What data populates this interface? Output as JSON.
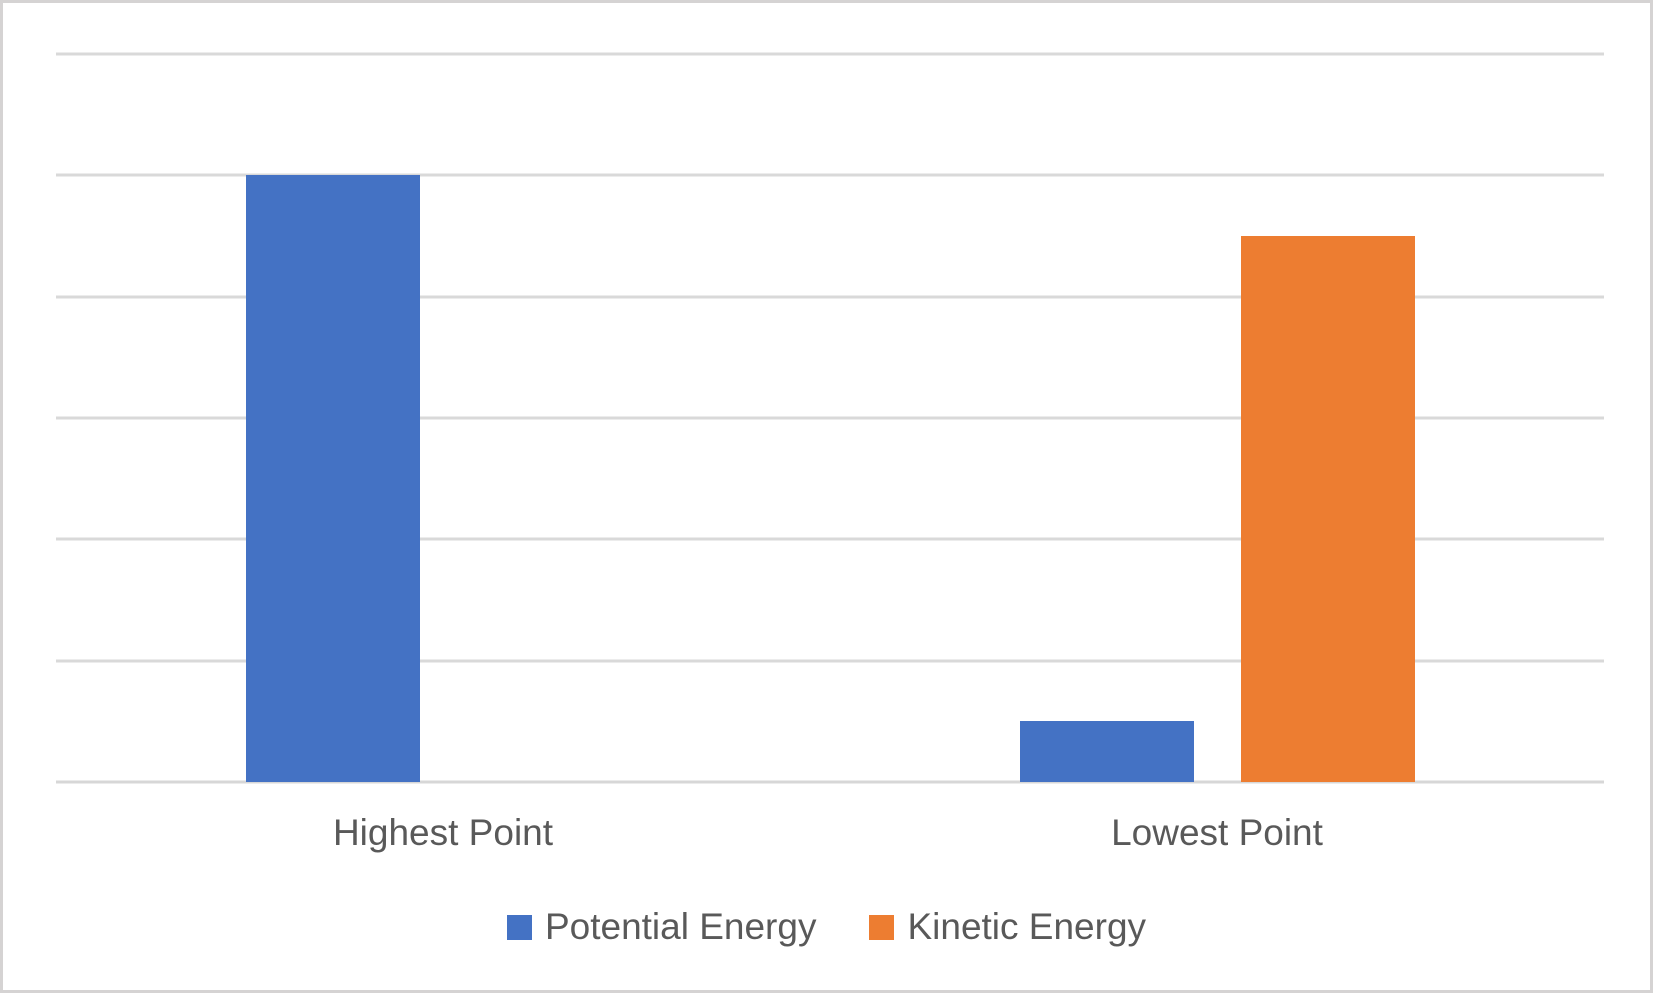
{
  "chart_data": {
    "type": "bar",
    "title": "",
    "xlabel": "",
    "ylabel": "",
    "categories": [
      "Highest Point",
      "Lowest Point"
    ],
    "series": [
      {
        "name": "Potential Energy",
        "color": "#4472C4",
        "values": [
          100,
          10
        ]
      },
      {
        "name": "Kinetic Energy",
        "color": "#ED7D31",
        "values": [
          0,
          90
        ]
      }
    ],
    "ylim": [
      0,
      120
    ],
    "ystep": 20,
    "grid": true,
    "y_axis_labels_visible": false,
    "x_axis_labels_visible": true,
    "legend_position": "bottom"
  },
  "styles": {
    "background": "#FFFFFF",
    "border_color": "#D5D3D3",
    "gridline_color": "#D9D9D9",
    "axis_line_color": "#D7D7D7",
    "text_color": "#595959"
  }
}
